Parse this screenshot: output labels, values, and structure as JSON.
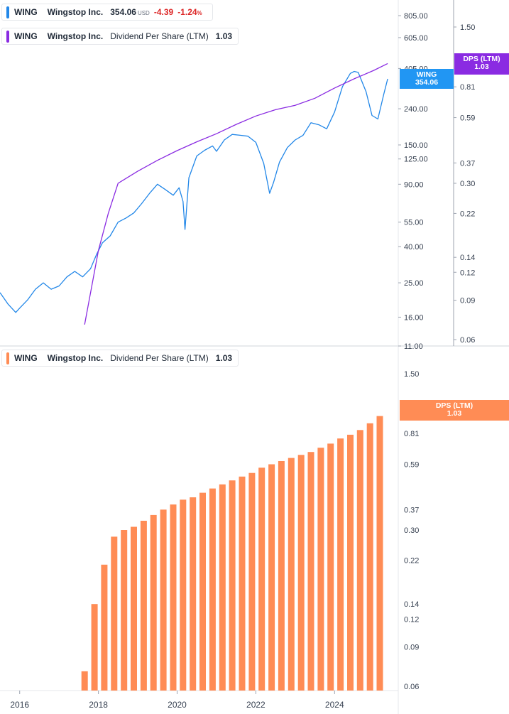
{
  "colors": {
    "price": "#2287e8",
    "dps_line": "#8a2be2",
    "bar": "#ff8c55",
    "negative": "#dc2626",
    "tag_price": "#2196f3",
    "tag_dps_top": "#8a2be2",
    "tag_dps_bottom": "#ff8c55",
    "axis_text": "#374151",
    "axis_line": "#9ca3af"
  },
  "legend_price": {
    "ticker": "WING",
    "name": "Wingstop Inc.",
    "price": "354.06",
    "currency": "USD",
    "change": "-4.39",
    "change_pct": "-1.24",
    "pct_suffix": "%"
  },
  "legend_dps_top": {
    "ticker": "WING",
    "name": "Wingstop Inc.",
    "metric": "Dividend Per Share (LTM)",
    "value": "1.03"
  },
  "legend_dps_bottom": {
    "ticker": "WING",
    "name": "Wingstop Inc.",
    "metric": "Dividend Per Share (LTM)",
    "value": "1.03"
  },
  "tags": {
    "price": {
      "line1": "WING",
      "line2": "354.06"
    },
    "dps_top": {
      "line1": "DPS (LTM)",
      "line2": "1.03"
    },
    "dps_bottom": {
      "line1": "DPS (LTM)",
      "line2": "1.03"
    }
  },
  "chart_data": [
    {
      "type": "line",
      "title": "",
      "scale": "log",
      "x_range": [
        2015.5,
        2025.6
      ],
      "y_right_ticks": [
        "805.00",
        "605.00",
        "405.00",
        "240.00",
        "150.00",
        "125.00",
        "90.00",
        "55.00",
        "40.00",
        "25.00",
        "16.00",
        "11.00"
      ],
      "y_right2_ticks": [
        "1.50",
        "0.81",
        "0.59",
        "0.37",
        "0.30",
        "0.22",
        "0.14",
        "0.12",
        "0.09",
        "0.06"
      ],
      "series": [
        {
          "name": "WING",
          "axis": "price",
          "x": [
            2015.5,
            2015.7,
            2015.9,
            2016.0,
            2016.2,
            2016.4,
            2016.6,
            2016.8,
            2017.0,
            2017.2,
            2017.4,
            2017.6,
            2017.8,
            2017.95,
            2018.1,
            2018.3,
            2018.5,
            2018.7,
            2018.9,
            2019.1,
            2019.3,
            2019.5,
            2019.7,
            2019.9,
            2020.05,
            2020.15,
            2020.2,
            2020.3,
            2020.5,
            2020.7,
            2020.9,
            2021.0,
            2021.2,
            2021.4,
            2021.6,
            2021.8,
            2022.0,
            2022.2,
            2022.35,
            2022.45,
            2022.6,
            2022.8,
            2023.0,
            2023.2,
            2023.4,
            2023.6,
            2023.8,
            2024.0,
            2024.2,
            2024.4,
            2024.5,
            2024.6,
            2024.8,
            2024.95,
            2025.1,
            2025.25,
            2025.35
          ],
          "values": [
            22,
            19,
            17,
            18,
            20,
            23,
            25,
            23,
            24,
            27,
            29,
            27,
            30,
            36,
            42,
            46,
            55,
            58,
            62,
            70,
            80,
            90,
            84,
            78,
            86,
            72,
            50,
            98,
            130,
            140,
            148,
            138,
            160,
            172,
            170,
            168,
            155,
            118,
            80,
            92,
            120,
            145,
            160,
            170,
            200,
            195,
            185,
            230,
            320,
            380,
            390,
            385,
            300,
            220,
            210,
            290,
            354.06
          ]
        },
        {
          "name": "Dividend Per Share (LTM)",
          "axis": "dps",
          "x": [
            2017.65,
            2018.0,
            2018.25,
            2018.5,
            2019.0,
            2019.5,
            2020.0,
            2020.5,
            2021.0,
            2021.5,
            2022.0,
            2022.5,
            2023.0,
            2023.5,
            2024.0,
            2024.5,
            2025.0,
            2025.35
          ],
          "values": [
            0.07,
            0.15,
            0.22,
            0.3,
            0.34,
            0.38,
            0.42,
            0.46,
            0.5,
            0.55,
            0.6,
            0.64,
            0.67,
            0.72,
            0.8,
            0.88,
            0.96,
            1.03
          ]
        }
      ]
    },
    {
      "type": "bar",
      "title": "",
      "scale": "log",
      "x_ticks": [
        "2016",
        "2018",
        "2020",
        "2022",
        "2024"
      ],
      "y_right_ticks": [
        "1.50",
        "0.81",
        "0.59",
        "0.37",
        "0.30",
        "0.22",
        "0.14",
        "0.12",
        "0.09",
        "0.06"
      ],
      "series": [
        {
          "name": "Dividend Per Share (LTM)",
          "x": [
            2017.65,
            2017.9,
            2018.15,
            2018.4,
            2018.65,
            2018.9,
            2019.15,
            2019.4,
            2019.65,
            2019.9,
            2020.15,
            2020.4,
            2020.65,
            2020.9,
            2021.15,
            2021.4,
            2021.65,
            2021.9,
            2022.15,
            2022.4,
            2022.65,
            2022.9,
            2023.15,
            2023.4,
            2023.65,
            2023.9,
            2024.15,
            2024.4,
            2024.65,
            2024.9,
            2025.15
          ],
          "values": [
            0.07,
            0.14,
            0.21,
            0.28,
            0.3,
            0.31,
            0.33,
            0.35,
            0.37,
            0.39,
            0.41,
            0.42,
            0.44,
            0.46,
            0.48,
            0.5,
            0.52,
            0.54,
            0.57,
            0.59,
            0.61,
            0.63,
            0.65,
            0.67,
            0.7,
            0.73,
            0.77,
            0.8,
            0.84,
            0.9,
            0.97
          ]
        }
      ]
    }
  ]
}
